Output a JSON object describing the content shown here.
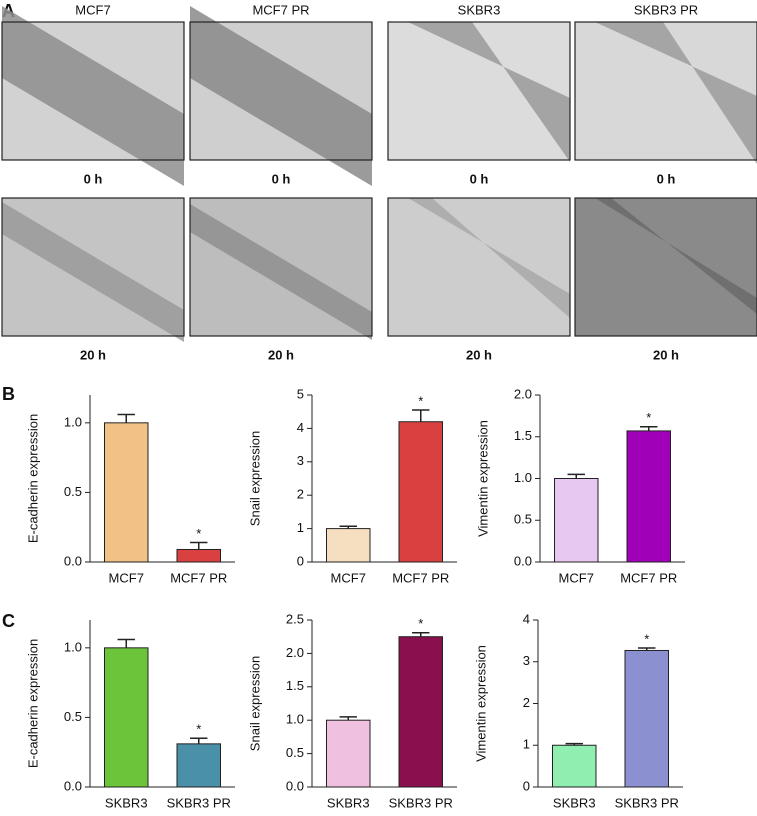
{
  "panel_labels": [
    "A",
    "B",
    "C"
  ],
  "images": {
    "columns": [
      "MCF7",
      "MCF7 PR",
      "SKBR3",
      "SKBR3 PR"
    ],
    "rows": [
      "0 h",
      "20 h"
    ]
  },
  "chart_data": [
    {
      "type": "bar",
      "ylabel": "E-cadherin expression",
      "categories": [
        "MCF7",
        "MCF7 PR"
      ],
      "values": [
        1.0,
        0.09
      ],
      "errors": [
        0.06,
        0.05
      ],
      "significance": [
        null,
        "*"
      ],
      "colors": [
        "#f2c185",
        "#d94040"
      ],
      "ylim": [
        0,
        1.2
      ],
      "yticks": [
        {
          "value": 0,
          "label": "0.0"
        },
        0.5,
        {
          "value": 1,
          "label": "1.0"
        }
      ]
    },
    {
      "type": "bar",
      "ylabel": "Snail expression",
      "categories": [
        "MCF7",
        "MCF7 PR"
      ],
      "values": [
        1.0,
        4.2
      ],
      "errors": [
        0.07,
        0.35
      ],
      "significance": [
        null,
        "*"
      ],
      "colors": [
        "#f5dfc0",
        "#d94040"
      ],
      "ylim": [
        0,
        5
      ],
      "yticks": [
        0,
        1,
        2,
        3,
        4,
        5
      ]
    },
    {
      "type": "bar",
      "ylabel": "Vimentin expression",
      "categories": [
        "MCF7",
        "MCF7 PR"
      ],
      "values": [
        1.0,
        1.57
      ],
      "errors": [
        0.05,
        0.05
      ],
      "significance": [
        null,
        "*"
      ],
      "colors": [
        "#e6c8f0",
        "#a000b8"
      ],
      "ylim": [
        0,
        2
      ],
      "yticks": [
        {
          "value": 0,
          "label": "0.0"
        },
        0.5,
        {
          "value": 1,
          "label": "1.0"
        },
        1.5,
        {
          "value": 2,
          "label": "2.0"
        }
      ]
    },
    {
      "type": "bar",
      "ylabel": "E-cadherin expression",
      "categories": [
        "SKBR3",
        "SKBR3 PR"
      ],
      "values": [
        1.0,
        0.31
      ],
      "errors": [
        0.06,
        0.04
      ],
      "significance": [
        null,
        "*"
      ],
      "colors": [
        "#6cc43a",
        "#4a90a8"
      ],
      "ylim": [
        0,
        1.2
      ],
      "yticks": [
        {
          "value": 0,
          "label": "0.0"
        },
        0.5,
        {
          "value": 1,
          "label": "1.0"
        }
      ]
    },
    {
      "type": "bar",
      "ylabel": "Snail expression",
      "categories": [
        "SKBR3",
        "SKBR3 PR"
      ],
      "values": [
        1.0,
        2.25
      ],
      "errors": [
        0.05,
        0.06
      ],
      "significance": [
        null,
        "*"
      ],
      "colors": [
        "#f0c0e0",
        "#8a0f4e"
      ],
      "ylim": [
        0,
        2.5
      ],
      "yticks": [
        {
          "value": 0,
          "label": "0.0"
        },
        0.5,
        {
          "value": 1,
          "label": "1.0"
        },
        1.5,
        {
          "value": 2,
          "label": "2.0"
        },
        2.5
      ]
    },
    {
      "type": "bar",
      "ylabel": "Vimentin expression",
      "categories": [
        "SKBR3",
        "SKBR3 PR"
      ],
      "values": [
        1.0,
        3.27
      ],
      "errors": [
        0.04,
        0.06
      ],
      "significance": [
        null,
        "*"
      ],
      "colors": [
        "#90eeb0",
        "#8a90d0"
      ],
      "ylim": [
        0,
        4
      ],
      "yticks": [
        0,
        1,
        2,
        3,
        4
      ]
    }
  ]
}
